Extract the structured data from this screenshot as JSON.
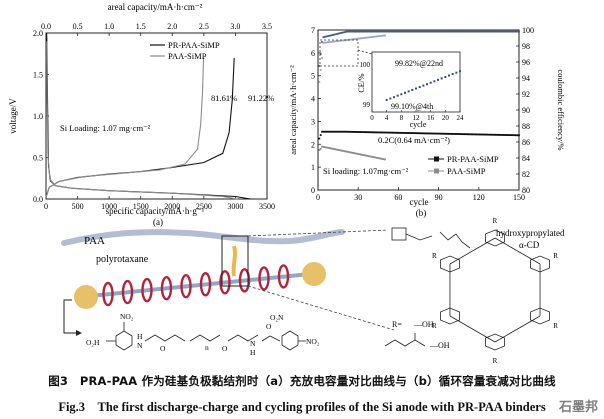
{
  "chart_data": [
    {
      "type": "line",
      "panel": "(a)",
      "xlabel": "specific capacity/mA·h·g⁻¹",
      "x_ticks": [
        "0",
        "500",
        "1000",
        "1500",
        "2000",
        "2500",
        "3000",
        "3500"
      ],
      "xlim": [
        0,
        3500
      ],
      "top_xlabel": "areal capacity/mA·h·cm⁻²",
      "top_ticks": [
        "0.0",
        "0.5",
        "1.0",
        "1.5",
        "2.0",
        "2.5",
        "3.0",
        "3.5"
      ],
      "ylabel": "voltage/V",
      "y_ticks": [
        "0.0",
        "0.5",
        "1.0",
        "1.5",
        "2.0"
      ],
      "ylim": [
        0,
        2.0
      ],
      "legend": [
        "PR-PAA-SiMP",
        "PAA-SiMP"
      ],
      "annotations": [
        "81.61%",
        "91.22%",
        "Si Loading: 1.07 mg·cm⁻²"
      ],
      "series": [
        {
          "name": "PR-PAA-SiMP",
          "color": "#111111",
          "discharge": [
            [
              3240,
              0.0
            ],
            [
              3000,
              0.03
            ],
            [
              2000,
              0.07
            ],
            [
              1000,
              0.1
            ],
            [
              400,
              0.13
            ],
            [
              150,
              0.16
            ],
            [
              70,
              0.22
            ],
            [
              40,
              0.4
            ],
            [
              25,
              1.1
            ],
            [
              15,
              1.9
            ],
            [
              10,
              2.0
            ]
          ],
          "charge": [
            [
              0,
              0.02
            ],
            [
              50,
              0.14
            ],
            [
              200,
              0.21
            ],
            [
              500,
              0.26
            ],
            [
              1000,
              0.3
            ],
            [
              1500,
              0.33
            ],
            [
              2000,
              0.38
            ],
            [
              2500,
              0.44
            ],
            [
              2800,
              0.55
            ],
            [
              2900,
              0.8
            ],
            [
              2950,
              1.2
            ],
            [
              2980,
              1.7
            ]
          ]
        },
        {
          "name": "PAA-SiMP",
          "color": "#8c8c8c",
          "discharge": [
            [
              3030,
              0.0
            ],
            [
              2800,
              0.03
            ],
            [
              2000,
              0.07
            ],
            [
              1000,
              0.1
            ],
            [
              400,
              0.13
            ],
            [
              150,
              0.16
            ],
            [
              60,
              0.24
            ],
            [
              30,
              0.55
            ],
            [
              18,
              1.2
            ],
            [
              12,
              1.9
            ]
          ],
          "charge": [
            [
              0,
              0.02
            ],
            [
              50,
              0.14
            ],
            [
              200,
              0.21
            ],
            [
              600,
              0.27
            ],
            [
              1200,
              0.31
            ],
            [
              1800,
              0.35
            ],
            [
              2200,
              0.42
            ],
            [
              2400,
              0.6
            ],
            [
              2450,
              0.9
            ],
            [
              2480,
              1.3
            ],
            [
              2495,
              1.7
            ]
          ]
        }
      ]
    },
    {
      "type": "scatter",
      "panel": "(b)",
      "xlabel": "cycle",
      "x_ticks": [
        "0",
        "30",
        "60",
        "90",
        "120",
        "150"
      ],
      "xlim": [
        0,
        150
      ],
      "ylabel": "areal capacity/mA·h·cm⁻²",
      "y_ticks": [
        "0",
        "1",
        "2",
        "3",
        "4",
        "5",
        "6",
        "7"
      ],
      "ylim": [
        0,
        7
      ],
      "y2label": "coulombic efficiency/%",
      "y2_ticks": [
        "80",
        "82",
        "84",
        "86",
        "88",
        "90",
        "92",
        "94",
        "96",
        "98",
        "100"
      ],
      "y2lim": [
        80,
        100
      ],
      "annotations": [
        "0.2C(0.64 mA·cm⁻²)",
        "Si loading: 1.07mg·cm⁻²"
      ],
      "legend": [
        "PR-PAA-SiMP",
        "PAA-SiMP"
      ],
      "inset": {
        "xlabel": "cycle",
        "x_ticks": [
          "0",
          "4",
          "8",
          "12",
          "16",
          "20",
          "24"
        ],
        "ylabel": "CE/%",
        "y_ticks": [
          "99",
          "100"
        ],
        "labels": [
          "99.82%@22nd",
          "99.10%@4th"
        ]
      }
    }
  ],
  "panel_a_label": "(a)",
  "panel_b_label": "(b)",
  "schematic": {
    "paa_label": "PAA",
    "polyrotaxane_label": "polyrotaxane",
    "cd_label": "hydroxypropylated",
    "cd_label2": "α-CD",
    "r_group_label": "R=",
    "r_oh": "—OH",
    "r_ring_letter": "R",
    "chain_labels": [
      "NO₂",
      "O₂N",
      "NO₂",
      "O₂H",
      "H",
      "N",
      "O",
      "O",
      "N",
      "H",
      "O",
      "n",
      "a"
    ]
  },
  "caption": {
    "cn": "图3　PRA-PAA 作为硅基负极黏结剂时（a）充放电容量对比曲线与（b）循环容量衰减对比曲线",
    "en": "Fig.3　The first discharge-charge and cycling profiles of the Si anode with PR-PAA binders"
  },
  "watermark": "石墨邦"
}
